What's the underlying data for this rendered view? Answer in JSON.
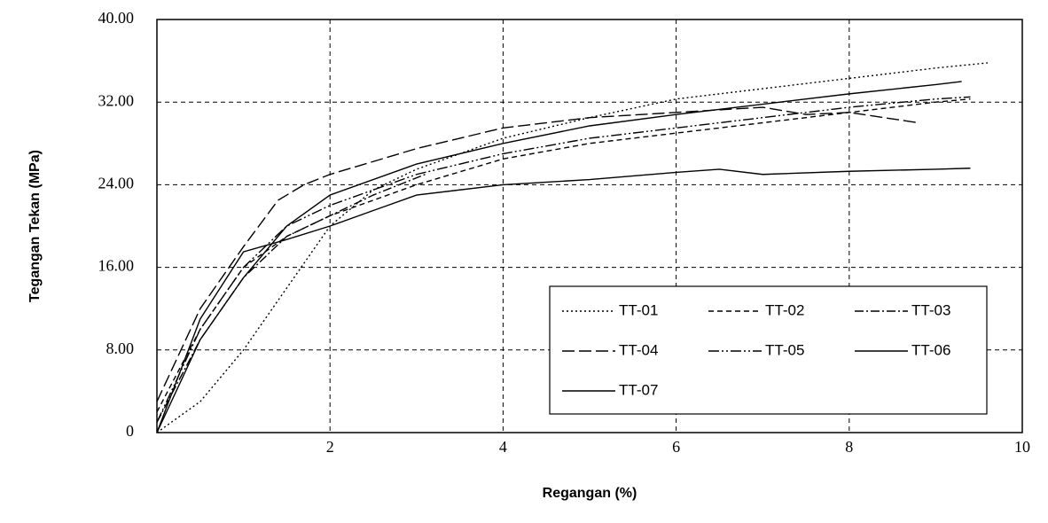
{
  "chart_data": {
    "type": "line",
    "xlabel": "Regangan  (%)",
    "ylabel": "Tegangan Tekan (MPa)",
    "xlim": [
      0,
      10
    ],
    "ylim": [
      0,
      40
    ],
    "xticks": [
      2,
      4,
      6,
      8,
      10
    ],
    "yticks": [
      0,
      {
        "value": 8,
        "label": "8.00"
      },
      {
        "value": 16,
        "label": "16.00"
      },
      {
        "value": 24,
        "label": "24.00"
      },
      {
        "value": 32,
        "label": "32.00"
      },
      {
        "value": 40,
        "label": "40.00"
      }
    ],
    "grid": true,
    "legend": "lower right",
    "series": [
      {
        "name": "TT-01",
        "color": "#000000",
        "dash": "2 3",
        "x": [
          0,
          0.5,
          1,
          1.5,
          2,
          2.5,
          3,
          4,
          5,
          6,
          7,
          8,
          9,
          9.6
        ],
        "values": [
          0,
          3,
          8,
          14,
          20,
          23.5,
          25.5,
          28.5,
          30.5,
          32.3,
          33.3,
          34.3,
          35.3,
          35.8
        ]
      },
      {
        "name": "TT-02",
        "color": "#000000",
        "dash": "6 4",
        "x": [
          0,
          0.5,
          1,
          1.5,
          2,
          3,
          4,
          5,
          6,
          7,
          8,
          9,
          9.4
        ],
        "values": [
          2,
          10,
          16,
          19,
          21,
          24,
          26.5,
          28,
          29,
          30,
          31,
          32,
          32.3
        ]
      },
      {
        "name": "TT-03",
        "color": "#000000",
        "dash": "10 3 2 3",
        "x": [
          0,
          0.5,
          1,
          1.5,
          2,
          2.5,
          3.1
        ],
        "values": [
          1,
          9,
          15,
          19,
          21,
          23,
          25
        ]
      },
      {
        "name": "TT-04",
        "color": "#000000",
        "dash": "14 5",
        "x": [
          0,
          0.5,
          1,
          1.4,
          1.7,
          2,
          3,
          4,
          5,
          6,
          7,
          7.5,
          8,
          8.8
        ],
        "values": [
          3,
          12,
          18,
          22.5,
          24,
          25,
          27.5,
          29.5,
          30.5,
          31,
          31.5,
          30.8,
          31,
          30
        ]
      },
      {
        "name": "TT-05",
        "color": "#000000",
        "dash": "12 3 2 3 2 3",
        "x": [
          0,
          0.5,
          1,
          1.5,
          2,
          3,
          4,
          5,
          6,
          7,
          8,
          9,
          9.4
        ],
        "values": [
          1,
          10,
          16,
          20,
          22,
          25,
          27,
          28.5,
          29.5,
          30.5,
          31.5,
          32.3,
          32.5
        ]
      },
      {
        "name": "TT-06",
        "color": "#000000",
        "dash": "none",
        "x": [
          0,
          0.5,
          1,
          1.5,
          2,
          2.5,
          3,
          4,
          5,
          6,
          6.5,
          7,
          8,
          9,
          9.4
        ],
        "values": [
          0,
          11,
          17.5,
          18.7,
          20,
          21.5,
          23,
          24,
          24.5,
          25.2,
          25.5,
          25,
          25.3,
          25.5,
          25.6
        ]
      },
      {
        "name": "TT-07",
        "color": "#000000",
        "dash": "none",
        "x": [
          0,
          0.5,
          1,
          1.5,
          2,
          3,
          4,
          5,
          6,
          7,
          8,
          9,
          9.3
        ],
        "values": [
          0,
          9,
          15,
          20,
          23,
          26,
          28,
          29.7,
          30.8,
          31.8,
          32.8,
          33.7,
          34
        ]
      }
    ]
  }
}
